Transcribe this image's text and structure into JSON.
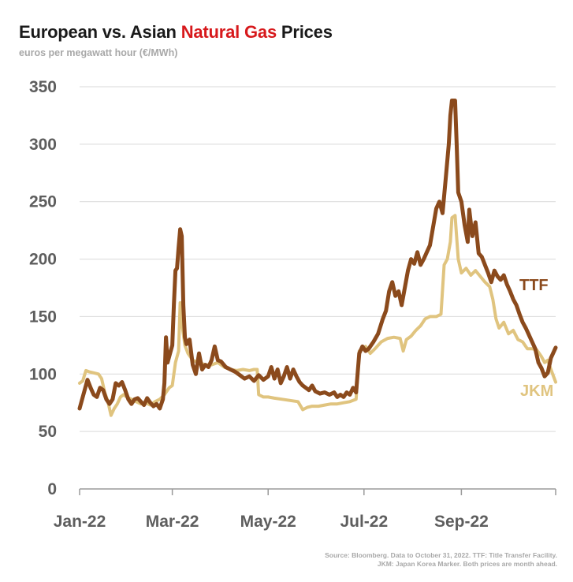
{
  "header": {
    "title_before": "European vs. Asian ",
    "title_accent": "Natural Gas",
    "title_after": " Prices",
    "subtitle": "euros per megawatt hour (€/MWh)"
  },
  "footer": {
    "source_line1": "Source: Bloomberg. Data to October 31, 2022. TTF: Title Transfer Facility.",
    "source_line2": "JKM: Japan Korea Marker. Both prices are month ahead."
  },
  "colors": {
    "ttf": "#8b4a1c",
    "jkm": "#e0c47f",
    "title_accent": "#d7191c",
    "grid": "#d9d9d9",
    "axis_text": "#5e5e5e"
  },
  "chart_data": {
    "type": "line",
    "title": "European vs. Asian Natural Gas Prices",
    "subtitle": "euros per megawatt hour (€/MWh)",
    "ylim": [
      0,
      350
    ],
    "xlim": [
      "2022-01-01",
      "2022-10-31"
    ],
    "yticks": [
      0,
      50,
      100,
      150,
      200,
      250,
      300,
      350
    ],
    "xticks": [
      {
        "date": "2022-01-01",
        "label": "Jan-22"
      },
      {
        "date": "2022-03-01",
        "label": "Mar-22"
      },
      {
        "date": "2022-05-01",
        "label": "May-22"
      },
      {
        "date": "2022-07-01",
        "label": "Jul-22"
      },
      {
        "date": "2022-09-01",
        "label": "Sep-22"
      },
      {
        "date": "2022-10-31",
        "label": ""
      }
    ],
    "grid": true,
    "legend": "direct labels at line ends",
    "series": [
      {
        "name": "TTF",
        "points": [
          [
            "2022-01-01",
            70
          ],
          [
            "2022-01-04",
            85
          ],
          [
            "2022-01-06",
            95
          ],
          [
            "2022-01-08",
            88
          ],
          [
            "2022-01-10",
            82
          ],
          [
            "2022-01-12",
            80
          ],
          [
            "2022-01-14",
            88
          ],
          [
            "2022-01-16",
            86
          ],
          [
            "2022-01-18",
            78
          ],
          [
            "2022-01-20",
            74
          ],
          [
            "2022-01-22",
            78
          ],
          [
            "2022-01-24",
            92
          ],
          [
            "2022-01-26",
            90
          ],
          [
            "2022-01-28",
            93
          ],
          [
            "2022-01-30",
            86
          ],
          [
            "2022-02-01",
            78
          ],
          [
            "2022-02-03",
            74
          ],
          [
            "2022-02-05",
            78
          ],
          [
            "2022-02-07",
            79
          ],
          [
            "2022-02-09",
            76
          ],
          [
            "2022-02-11",
            73
          ],
          [
            "2022-02-13",
            79
          ],
          [
            "2022-02-15",
            75
          ],
          [
            "2022-02-17",
            72
          ],
          [
            "2022-02-19",
            74
          ],
          [
            "2022-02-21",
            70
          ],
          [
            "2022-02-23",
            78
          ],
          [
            "2022-02-24",
            92
          ],
          [
            "2022-02-25",
            132
          ],
          [
            "2022-02-26",
            110
          ],
          [
            "2022-02-28",
            120
          ],
          [
            "2022-03-01",
            125
          ],
          [
            "2022-03-02",
            160
          ],
          [
            "2022-03-03",
            190
          ],
          [
            "2022-03-04",
            192
          ],
          [
            "2022-03-05",
            210
          ],
          [
            "2022-03-06",
            226
          ],
          [
            "2022-03-07",
            220
          ],
          [
            "2022-03-08",
            160
          ],
          [
            "2022-03-09",
            132
          ],
          [
            "2022-03-10",
            126
          ],
          [
            "2022-03-12",
            130
          ],
          [
            "2022-03-14",
            108
          ],
          [
            "2022-03-16",
            100
          ],
          [
            "2022-03-18",
            118
          ],
          [
            "2022-03-20",
            104
          ],
          [
            "2022-03-22",
            108
          ],
          [
            "2022-03-24",
            106
          ],
          [
            "2022-03-26",
            112
          ],
          [
            "2022-03-28",
            124
          ],
          [
            "2022-03-30",
            112
          ],
          [
            "2022-04-01",
            111
          ],
          [
            "2022-04-04",
            106
          ],
          [
            "2022-04-07",
            104
          ],
          [
            "2022-04-10",
            102
          ],
          [
            "2022-04-13",
            99
          ],
          [
            "2022-04-16",
            96
          ],
          [
            "2022-04-19",
            98
          ],
          [
            "2022-04-22",
            94
          ],
          [
            "2022-04-25",
            99
          ],
          [
            "2022-04-28",
            95
          ],
          [
            "2022-05-01",
            98
          ],
          [
            "2022-05-03",
            106
          ],
          [
            "2022-05-05",
            96
          ],
          [
            "2022-05-07",
            104
          ],
          [
            "2022-05-09",
            92
          ],
          [
            "2022-05-11",
            98
          ],
          [
            "2022-05-13",
            106
          ],
          [
            "2022-05-15",
            96
          ],
          [
            "2022-05-17",
            104
          ],
          [
            "2022-05-19",
            98
          ],
          [
            "2022-05-21",
            93
          ],
          [
            "2022-05-23",
            90
          ],
          [
            "2022-05-25",
            88
          ],
          [
            "2022-05-27",
            86
          ],
          [
            "2022-05-29",
            90
          ],
          [
            "2022-05-31",
            85
          ],
          [
            "2022-06-03",
            83
          ],
          [
            "2022-06-06",
            84
          ],
          [
            "2022-06-09",
            82
          ],
          [
            "2022-06-12",
            84
          ],
          [
            "2022-06-14",
            80
          ],
          [
            "2022-06-16",
            82
          ],
          [
            "2022-06-18",
            80
          ],
          [
            "2022-06-20",
            84
          ],
          [
            "2022-06-22",
            82
          ],
          [
            "2022-06-24",
            88
          ],
          [
            "2022-06-26",
            84
          ],
          [
            "2022-06-28",
            118
          ],
          [
            "2022-06-30",
            124
          ],
          [
            "2022-07-02",
            120
          ],
          [
            "2022-07-04",
            122
          ],
          [
            "2022-07-07",
            128
          ],
          [
            "2022-07-10",
            135
          ],
          [
            "2022-07-13",
            148
          ],
          [
            "2022-07-15",
            155
          ],
          [
            "2022-07-17",
            172
          ],
          [
            "2022-07-19",
            180
          ],
          [
            "2022-07-21",
            168
          ],
          [
            "2022-07-23",
            172
          ],
          [
            "2022-07-25",
            160
          ],
          [
            "2022-07-27",
            175
          ],
          [
            "2022-07-29",
            190
          ],
          [
            "2022-07-31",
            200
          ],
          [
            "2022-08-02",
            196
          ],
          [
            "2022-08-04",
            206
          ],
          [
            "2022-08-06",
            195
          ],
          [
            "2022-08-08",
            200
          ],
          [
            "2022-08-10",
            206
          ],
          [
            "2022-08-12",
            212
          ],
          [
            "2022-08-14",
            228
          ],
          [
            "2022-08-16",
            244
          ],
          [
            "2022-08-18",
            250
          ],
          [
            "2022-08-20",
            240
          ],
          [
            "2022-08-22",
            270
          ],
          [
            "2022-08-24",
            300
          ],
          [
            "2022-08-25",
            325
          ],
          [
            "2022-08-26",
            338
          ],
          [
            "2022-08-28",
            338
          ],
          [
            "2022-08-29",
            300
          ],
          [
            "2022-08-30",
            258
          ],
          [
            "2022-09-01",
            250
          ],
          [
            "2022-09-03",
            230
          ],
          [
            "2022-09-05",
            215
          ],
          [
            "2022-09-06",
            243
          ],
          [
            "2022-09-08",
            220
          ],
          [
            "2022-09-10",
            232
          ],
          [
            "2022-09-12",
            205
          ],
          [
            "2022-09-14",
            202
          ],
          [
            "2022-09-16",
            195
          ],
          [
            "2022-09-18",
            188
          ],
          [
            "2022-09-20",
            180
          ],
          [
            "2022-09-22",
            190
          ],
          [
            "2022-09-24",
            185
          ],
          [
            "2022-09-26",
            182
          ],
          [
            "2022-09-28",
            186
          ],
          [
            "2022-09-30",
            178
          ],
          [
            "2022-10-02",
            172
          ],
          [
            "2022-10-04",
            165
          ],
          [
            "2022-10-06",
            160
          ],
          [
            "2022-10-08",
            152
          ],
          [
            "2022-10-10",
            145
          ],
          [
            "2022-10-12",
            140
          ],
          [
            "2022-10-14",
            134
          ],
          [
            "2022-10-16",
            128
          ],
          [
            "2022-10-18",
            122
          ],
          [
            "2022-10-20",
            110
          ],
          [
            "2022-10-22",
            105
          ],
          [
            "2022-10-24",
            98
          ],
          [
            "2022-10-26",
            101
          ],
          [
            "2022-10-28",
            114
          ],
          [
            "2022-10-31",
            123
          ]
        ]
      },
      {
        "name": "JKM",
        "points": [
          [
            "2022-01-01",
            92
          ],
          [
            "2022-01-03",
            94
          ],
          [
            "2022-01-05",
            103
          ],
          [
            "2022-01-07",
            102
          ],
          [
            "2022-01-10",
            101
          ],
          [
            "2022-01-13",
            100
          ],
          [
            "2022-01-15",
            96
          ],
          [
            "2022-01-17",
            84
          ],
          [
            "2022-01-19",
            76
          ],
          [
            "2022-01-21",
            64
          ],
          [
            "2022-01-23",
            70
          ],
          [
            "2022-01-25",
            74
          ],
          [
            "2022-01-27",
            80
          ],
          [
            "2022-01-29",
            82
          ],
          [
            "2022-01-31",
            80
          ],
          [
            "2022-02-03",
            78
          ],
          [
            "2022-02-06",
            76
          ],
          [
            "2022-02-09",
            74
          ],
          [
            "2022-02-12",
            75
          ],
          [
            "2022-02-15",
            73
          ],
          [
            "2022-02-18",
            76
          ],
          [
            "2022-02-21",
            78
          ],
          [
            "2022-02-24",
            82
          ],
          [
            "2022-02-27",
            88
          ],
          [
            "2022-03-01",
            90
          ],
          [
            "2022-03-03",
            110
          ],
          [
            "2022-03-05",
            120
          ],
          [
            "2022-03-06",
            162
          ],
          [
            "2022-03-07",
            145
          ],
          [
            "2022-03-09",
            125
          ],
          [
            "2022-03-11",
            118
          ],
          [
            "2022-03-14",
            112
          ],
          [
            "2022-03-18",
            110
          ],
          [
            "2022-03-22",
            108
          ],
          [
            "2022-03-26",
            108
          ],
          [
            "2022-03-30",
            110
          ],
          [
            "2022-04-03",
            106
          ],
          [
            "2022-04-07",
            104
          ],
          [
            "2022-04-11",
            103
          ],
          [
            "2022-04-15",
            104
          ],
          [
            "2022-04-19",
            103
          ],
          [
            "2022-04-22",
            104
          ],
          [
            "2022-04-24",
            104
          ],
          [
            "2022-04-25",
            82
          ],
          [
            "2022-04-28",
            80
          ],
          [
            "2022-05-01",
            80
          ],
          [
            "2022-05-05",
            79
          ],
          [
            "2022-05-10",
            78
          ],
          [
            "2022-05-15",
            77
          ],
          [
            "2022-05-20",
            76
          ],
          [
            "2022-05-23",
            69
          ],
          [
            "2022-05-26",
            71
          ],
          [
            "2022-05-29",
            72
          ],
          [
            "2022-06-02",
            72
          ],
          [
            "2022-06-06",
            73
          ],
          [
            "2022-06-10",
            74
          ],
          [
            "2022-06-14",
            74
          ],
          [
            "2022-06-18",
            75
          ],
          [
            "2022-06-22",
            76
          ],
          [
            "2022-06-26",
            78
          ],
          [
            "2022-06-28",
            120
          ],
          [
            "2022-07-02",
            124
          ],
          [
            "2022-07-05",
            118
          ],
          [
            "2022-07-08",
            122
          ],
          [
            "2022-07-12",
            128
          ],
          [
            "2022-07-16",
            131
          ],
          [
            "2022-07-20",
            132
          ],
          [
            "2022-07-24",
            131
          ],
          [
            "2022-07-26",
            120
          ],
          [
            "2022-07-28",
            130
          ],
          [
            "2022-07-31",
            133
          ],
          [
            "2022-08-03",
            138
          ],
          [
            "2022-08-06",
            142
          ],
          [
            "2022-08-09",
            148
          ],
          [
            "2022-08-12",
            150
          ],
          [
            "2022-08-16",
            150
          ],
          [
            "2022-08-19",
            152
          ],
          [
            "2022-08-21",
            195
          ],
          [
            "2022-08-23",
            200
          ],
          [
            "2022-08-25",
            215
          ],
          [
            "2022-08-26",
            236
          ],
          [
            "2022-08-28",
            238
          ],
          [
            "2022-08-30",
            200
          ],
          [
            "2022-09-01",
            188
          ],
          [
            "2022-09-04",
            192
          ],
          [
            "2022-09-07",
            186
          ],
          [
            "2022-09-10",
            190
          ],
          [
            "2022-09-13",
            185
          ],
          [
            "2022-09-16",
            180
          ],
          [
            "2022-09-19",
            176
          ],
          [
            "2022-09-21",
            165
          ],
          [
            "2022-09-23",
            148
          ],
          [
            "2022-09-25",
            140
          ],
          [
            "2022-09-28",
            145
          ],
          [
            "2022-10-01",
            135
          ],
          [
            "2022-10-04",
            138
          ],
          [
            "2022-10-07",
            130
          ],
          [
            "2022-10-10",
            128
          ],
          [
            "2022-10-13",
            122
          ],
          [
            "2022-10-16",
            122
          ],
          [
            "2022-10-19",
            121
          ],
          [
            "2022-10-22",
            115
          ],
          [
            "2022-10-24",
            110
          ],
          [
            "2022-10-26",
            112
          ],
          [
            "2022-10-28",
            104
          ],
          [
            "2022-10-31",
            93
          ]
        ]
      }
    ]
  }
}
